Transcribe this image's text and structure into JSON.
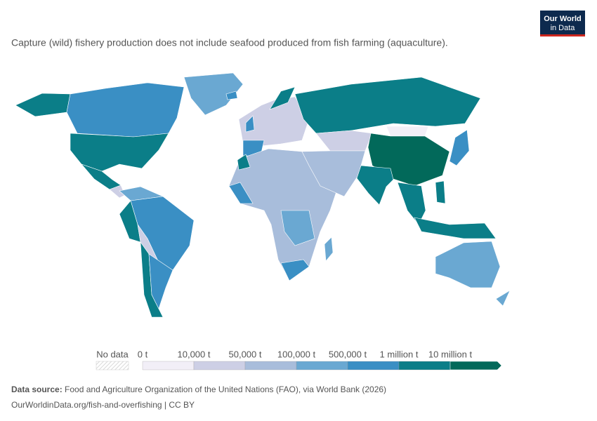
{
  "header": {
    "subtitle": "Capture (wild) fishery production does not include seafood produced from fish farming (aquaculture).",
    "logo_line1": "Our World",
    "logo_line2": "in Data"
  },
  "legend": {
    "no_data": "No data",
    "bins": [
      {
        "label": "0 t",
        "color": "#f2eff7"
      },
      {
        "label": "10,000 t",
        "color": "#cdcfe5"
      },
      {
        "label": "50,000 t",
        "color": "#a8bddb"
      },
      {
        "label": "100,000 t",
        "color": "#6aa8d2"
      },
      {
        "label": "500,000 t",
        "color": "#3a8fc4"
      },
      {
        "label": "1 million t",
        "color": "#0b7e88"
      },
      {
        "label": "10 million t",
        "color": "#02695a"
      }
    ]
  },
  "footer": {
    "source_label": "Data source:",
    "source_text": "Food and Agriculture Organization of the United Nations (FAO), via World Bank (2026)",
    "url": "OurWorldinData.org/fish-and-overfishing | CC BY"
  }
}
